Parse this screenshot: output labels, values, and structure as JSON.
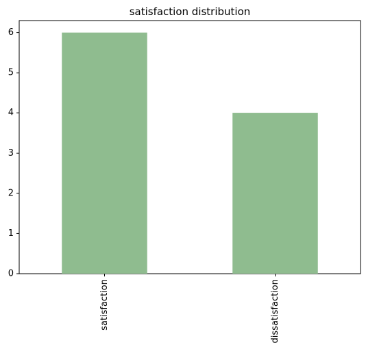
{
  "chart_data": {
    "type": "bar",
    "title": "satisfaction distribution",
    "xlabel": "",
    "ylabel": "",
    "categories": [
      "satisfaction",
      "dissatisfaction"
    ],
    "values": [
      6,
      4
    ],
    "ylim": [
      0,
      6.3
    ],
    "yticks": [
      0,
      1,
      2,
      3,
      4,
      5,
      6
    ],
    "grid": false,
    "legend": "none",
    "bar_color": "#8fbc8f",
    "x_tick_rotation": "vertical"
  }
}
